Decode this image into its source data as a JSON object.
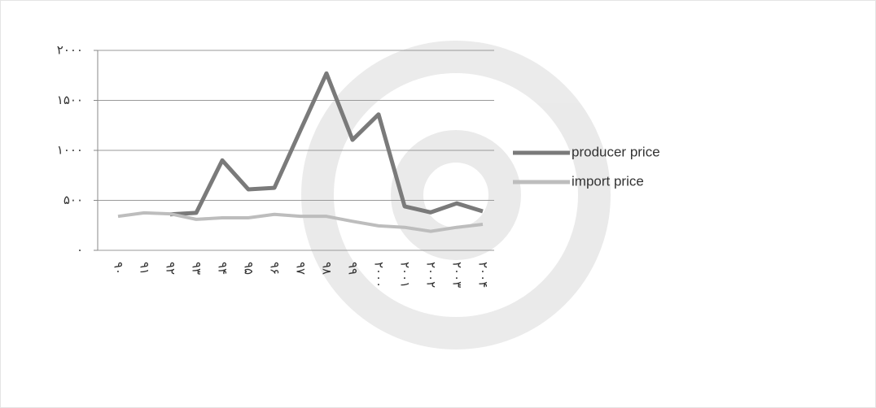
{
  "chart_data": {
    "type": "line",
    "categories": [
      "۹۰",
      "۹۱",
      "۹۲",
      "۹۳",
      "۹۴",
      "۹۵",
      "۹۶",
      "۹۷",
      "۹۸",
      "۹۹",
      "۲۰۰۰",
      "۲۰۰۱",
      "۲۰۰۲",
      "۲۰۰۳",
      "۲۰۰۴"
    ],
    "series": [
      {
        "name": "producer price",
        "color": "#7a7a7a",
        "values": [
          null,
          null,
          360,
          375,
          900,
          610,
          625,
          1200,
          1770,
          1105,
          1360,
          440,
          380,
          470,
          390
        ]
      },
      {
        "name": "import price",
        "color": "#bdbdbd",
        "values": [
          340,
          375,
          365,
          310,
          325,
          325,
          360,
          340,
          340,
          290,
          245,
          230,
          190,
          230,
          260
        ]
      }
    ],
    "ylim": [
      0,
      2000
    ],
    "yticks": [
      {
        "value": 0,
        "label": "۰"
      },
      {
        "value": 500,
        "label": "۵۰۰"
      },
      {
        "value": 1000,
        "label": "۱۰۰۰"
      },
      {
        "value": 1500,
        "label": "۱۵۰۰"
      },
      {
        "value": 2000,
        "label": "۲۰۰۰"
      }
    ],
    "grid": true,
    "legend": "right"
  }
}
